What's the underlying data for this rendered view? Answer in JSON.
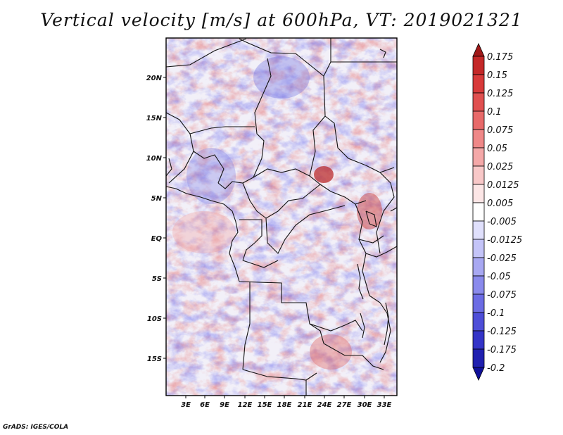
{
  "title": "Vertical velocity [m/s] at 600hPa, VT: 2019021321",
  "credit": "GrADS: IGES/COLA",
  "map": {
    "lon_ticks": [
      "3E",
      "6E",
      "9E",
      "12E",
      "15E",
      "18E",
      "21E",
      "24E",
      "27E",
      "30E",
      "33E"
    ],
    "lat_ticks": [
      "20N",
      "15N",
      "10N",
      "5N",
      "EQ",
      "5S",
      "10S",
      "15S"
    ],
    "lon_range": [
      0,
      34.5
    ],
    "lat_range": [
      -19.5,
      24.5
    ]
  },
  "colorbar": {
    "labels": [
      "0.175",
      "0.15",
      "0.125",
      "0.1",
      "0.075",
      "0.05",
      "0.025",
      "0.0125",
      "0.005",
      "-0.005",
      "-0.0125",
      "-0.025",
      "-0.05",
      "-0.075",
      "-0.1",
      "-0.125",
      "-0.175",
      "-0.2"
    ],
    "colors": [
      "#a01818",
      "#c42828",
      "#d83a3a",
      "#e05050",
      "#e86a6a",
      "#ef8888",
      "#f4a8a8",
      "#f8c8c8",
      "#fce6e6",
      "#ffffff",
      "#e0e0fc",
      "#c4c4f8",
      "#a8a8f2",
      "#8a8aec",
      "#6c6ce4",
      "#4e4ed8",
      "#3434c8",
      "#2020b0",
      "#10109a"
    ]
  }
}
